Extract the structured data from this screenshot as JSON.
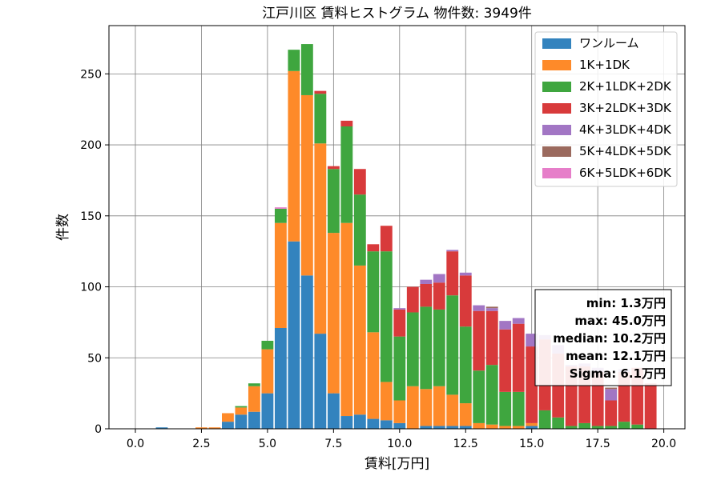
{
  "chart_data": {
    "type": "bar",
    "stacked": true,
    "title": "江戸川区 賃料ヒストグラム 物件数: 3949件",
    "xlabel": "賃料[万円]",
    "ylabel": "件数",
    "xlim": [
      -1.0,
      20.8
    ],
    "ylim": [
      0,
      284
    ],
    "xticks": [
      0.0,
      2.5,
      5.0,
      7.5,
      10.0,
      12.5,
      15.0,
      17.5,
      20.0
    ],
    "xtick_labels": [
      "0.0",
      "2.5",
      "5.0",
      "7.5",
      "10.0",
      "12.5",
      "15.0",
      "17.5",
      "20.0"
    ],
    "yticks": [
      0,
      50,
      100,
      150,
      200,
      250
    ],
    "ytick_labels": [
      "0",
      "50",
      "100",
      "150",
      "200",
      "250"
    ],
    "grid": true,
    "legend_position": "top-right",
    "bin_width": 0.5,
    "x": [
      1.0,
      2.5,
      3.0,
      3.5,
      4.0,
      4.5,
      5.0,
      5.5,
      6.0,
      6.5,
      7.0,
      7.5,
      8.0,
      8.5,
      9.0,
      9.5,
      10.0,
      10.5,
      11.0,
      11.5,
      12.0,
      12.5,
      13.0,
      13.5,
      14.0,
      14.5,
      15.0,
      15.5,
      16.0,
      16.5,
      17.0,
      17.5,
      18.0,
      18.5,
      19.0,
      19.5
    ],
    "series": [
      {
        "name": "ワンルーム",
        "color": "#3383be",
        "values": [
          1,
          0,
          0,
          5,
          10,
          12,
          25,
          71,
          132,
          108,
          67,
          25,
          9,
          10,
          7,
          6,
          4,
          0,
          2,
          2,
          2,
          2,
          0,
          0,
          0,
          0,
          2,
          0,
          0,
          0,
          0,
          0,
          0,
          0,
          0,
          0
        ]
      },
      {
        "name": "1K+1DK",
        "color": "#fe8a29",
        "values": [
          0,
          1,
          1,
          6,
          5,
          18,
          31,
          74,
          120,
          127,
          134,
          113,
          136,
          105,
          61,
          27,
          16,
          30,
          26,
          28,
          22,
          16,
          4,
          3,
          2,
          2,
          2,
          0,
          0,
          0,
          0,
          0,
          0,
          0,
          0,
          0
        ]
      },
      {
        "name": "2K+1LDK+2DK",
        "color": "#3fa63f",
        "values": [
          0,
          0,
          0,
          0,
          1,
          2,
          6,
          10,
          15,
          36,
          35,
          45,
          68,
          50,
          57,
          92,
          45,
          52,
          58,
          54,
          70,
          54,
          37,
          42,
          24,
          24,
          0,
          13,
          8,
          2,
          4,
          2,
          2,
          5,
          3,
          0
        ]
      },
      {
        "name": "3K+2LDK+3DK",
        "color": "#d83a3b",
        "values": [
          0,
          0,
          0,
          0,
          0,
          0,
          0,
          0,
          0,
          0,
          2,
          2,
          4,
          18,
          5,
          18,
          19,
          18,
          16,
          19,
          31,
          36,
          42,
          38,
          44,
          48,
          54,
          50,
          45,
          42,
          40,
          38,
          18,
          35,
          40,
          32
        ]
      },
      {
        "name": "4K+3LDK+4DK",
        "color": "#a276c4",
        "values": [
          0,
          0,
          0,
          0,
          0,
          0,
          0,
          0,
          0,
          0,
          0,
          0,
          0,
          0,
          0,
          0,
          1,
          0,
          3,
          6,
          1,
          2,
          4,
          2,
          6,
          4,
          9,
          3,
          6,
          1,
          2,
          3,
          8,
          2,
          0,
          0
        ]
      },
      {
        "name": "5K+4LDK+5DK",
        "color": "#9b6a5e",
        "values": [
          0,
          0,
          0,
          0,
          0,
          0,
          0,
          0,
          0,
          0,
          0,
          0,
          0,
          0,
          0,
          0,
          0,
          0,
          0,
          0,
          0,
          0,
          0,
          1,
          0,
          0,
          0,
          0,
          0,
          0,
          0,
          0,
          1,
          0,
          0,
          0
        ]
      },
      {
        "name": "6K+5LDK+6DK",
        "color": "#e67ec9",
        "values": [
          0,
          0,
          0,
          0,
          0,
          0,
          0,
          1,
          0,
          0,
          0,
          0,
          0,
          0,
          0,
          0,
          0,
          0,
          0,
          0,
          0,
          0,
          0,
          0,
          0,
          0,
          0,
          0,
          0,
          0,
          0,
          0,
          0,
          0,
          0,
          0
        ]
      }
    ],
    "stats_box": [
      "min: 1.3万円",
      "max: 45.0万円",
      "median: 10.2万円",
      "mean: 12.1万円",
      "Sigma: 6.1万円"
    ]
  }
}
